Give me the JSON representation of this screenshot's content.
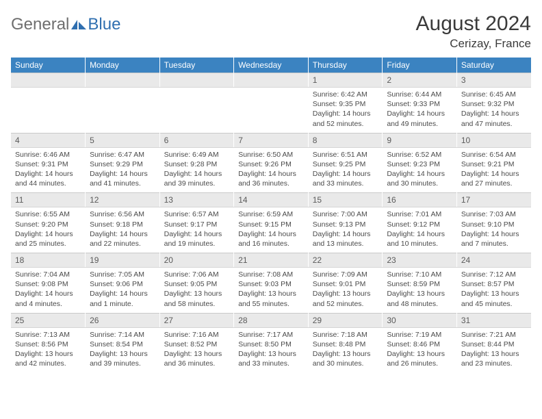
{
  "logo": {
    "text1": "General",
    "text2": "Blue"
  },
  "header": {
    "title": "August 2024",
    "location": "Cerizay, France"
  },
  "colors": {
    "header_bg": "#3b83c1",
    "header_text": "#ffffff",
    "daynum_bg": "#e9e9e9",
    "daynum_text": "#5a5a5a",
    "body_text": "#4a4a4a",
    "logo_gray": "#6e6e6e",
    "logo_blue": "#2f6fb0",
    "title_text": "#3a3a3a",
    "border": "#c9c9c9"
  },
  "weekdays": [
    "Sunday",
    "Monday",
    "Tuesday",
    "Wednesday",
    "Thursday",
    "Friday",
    "Saturday"
  ],
  "weeks": [
    [
      null,
      null,
      null,
      null,
      {
        "n": "1",
        "sr": "6:42 AM",
        "ss": "9:35 PM",
        "dl": "14 hours and 52 minutes."
      },
      {
        "n": "2",
        "sr": "6:44 AM",
        "ss": "9:33 PM",
        "dl": "14 hours and 49 minutes."
      },
      {
        "n": "3",
        "sr": "6:45 AM",
        "ss": "9:32 PM",
        "dl": "14 hours and 47 minutes."
      }
    ],
    [
      {
        "n": "4",
        "sr": "6:46 AM",
        "ss": "9:31 PM",
        "dl": "14 hours and 44 minutes."
      },
      {
        "n": "5",
        "sr": "6:47 AM",
        "ss": "9:29 PM",
        "dl": "14 hours and 41 minutes."
      },
      {
        "n": "6",
        "sr": "6:49 AM",
        "ss": "9:28 PM",
        "dl": "14 hours and 39 minutes."
      },
      {
        "n": "7",
        "sr": "6:50 AM",
        "ss": "9:26 PM",
        "dl": "14 hours and 36 minutes."
      },
      {
        "n": "8",
        "sr": "6:51 AM",
        "ss": "9:25 PM",
        "dl": "14 hours and 33 minutes."
      },
      {
        "n": "9",
        "sr": "6:52 AM",
        "ss": "9:23 PM",
        "dl": "14 hours and 30 minutes."
      },
      {
        "n": "10",
        "sr": "6:54 AM",
        "ss": "9:21 PM",
        "dl": "14 hours and 27 minutes."
      }
    ],
    [
      {
        "n": "11",
        "sr": "6:55 AM",
        "ss": "9:20 PM",
        "dl": "14 hours and 25 minutes."
      },
      {
        "n": "12",
        "sr": "6:56 AM",
        "ss": "9:18 PM",
        "dl": "14 hours and 22 minutes."
      },
      {
        "n": "13",
        "sr": "6:57 AM",
        "ss": "9:17 PM",
        "dl": "14 hours and 19 minutes."
      },
      {
        "n": "14",
        "sr": "6:59 AM",
        "ss": "9:15 PM",
        "dl": "14 hours and 16 minutes."
      },
      {
        "n": "15",
        "sr": "7:00 AM",
        "ss": "9:13 PM",
        "dl": "14 hours and 13 minutes."
      },
      {
        "n": "16",
        "sr": "7:01 AM",
        "ss": "9:12 PM",
        "dl": "14 hours and 10 minutes."
      },
      {
        "n": "17",
        "sr": "7:03 AM",
        "ss": "9:10 PM",
        "dl": "14 hours and 7 minutes."
      }
    ],
    [
      {
        "n": "18",
        "sr": "7:04 AM",
        "ss": "9:08 PM",
        "dl": "14 hours and 4 minutes."
      },
      {
        "n": "19",
        "sr": "7:05 AM",
        "ss": "9:06 PM",
        "dl": "14 hours and 1 minute."
      },
      {
        "n": "20",
        "sr": "7:06 AM",
        "ss": "9:05 PM",
        "dl": "13 hours and 58 minutes."
      },
      {
        "n": "21",
        "sr": "7:08 AM",
        "ss": "9:03 PM",
        "dl": "13 hours and 55 minutes."
      },
      {
        "n": "22",
        "sr": "7:09 AM",
        "ss": "9:01 PM",
        "dl": "13 hours and 52 minutes."
      },
      {
        "n": "23",
        "sr": "7:10 AM",
        "ss": "8:59 PM",
        "dl": "13 hours and 48 minutes."
      },
      {
        "n": "24",
        "sr": "7:12 AM",
        "ss": "8:57 PM",
        "dl": "13 hours and 45 minutes."
      }
    ],
    [
      {
        "n": "25",
        "sr": "7:13 AM",
        "ss": "8:56 PM",
        "dl": "13 hours and 42 minutes."
      },
      {
        "n": "26",
        "sr": "7:14 AM",
        "ss": "8:54 PM",
        "dl": "13 hours and 39 minutes."
      },
      {
        "n": "27",
        "sr": "7:16 AM",
        "ss": "8:52 PM",
        "dl": "13 hours and 36 minutes."
      },
      {
        "n": "28",
        "sr": "7:17 AM",
        "ss": "8:50 PM",
        "dl": "13 hours and 33 minutes."
      },
      {
        "n": "29",
        "sr": "7:18 AM",
        "ss": "8:48 PM",
        "dl": "13 hours and 30 minutes."
      },
      {
        "n": "30",
        "sr": "7:19 AM",
        "ss": "8:46 PM",
        "dl": "13 hours and 26 minutes."
      },
      {
        "n": "31",
        "sr": "7:21 AM",
        "ss": "8:44 PM",
        "dl": "13 hours and 23 minutes."
      }
    ]
  ],
  "labels": {
    "sunrise": "Sunrise:",
    "sunset": "Sunset:",
    "daylight": "Daylight:"
  }
}
